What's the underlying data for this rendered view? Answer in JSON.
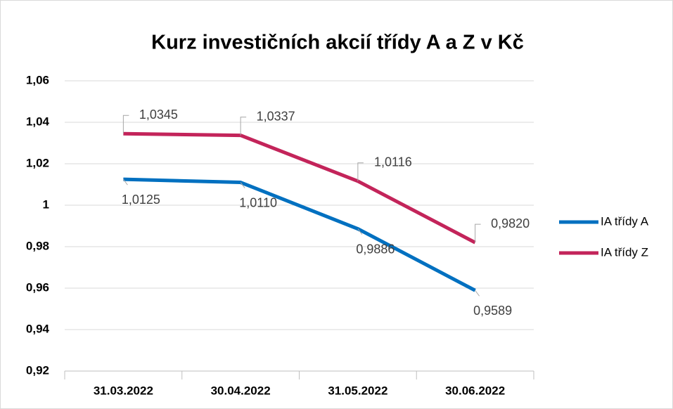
{
  "chart_data": {
    "type": "line",
    "title": "Kurz investičních akcií třídy A a Z v Kč",
    "categories": [
      "31.03.2022",
      "30.04.2022",
      "31.05.2022",
      "30.06.2022"
    ],
    "series": [
      {
        "name": "IA třídy A",
        "color": "#0070c0",
        "values": [
          1.0125,
          1.011,
          0.9886,
          0.9589
        ],
        "value_labels": [
          "1,0125",
          "1,0110",
          "0,9886",
          "0,9589"
        ]
      },
      {
        "name": "IA třídy Z",
        "color": "#c3245a",
        "values": [
          1.0345,
          1.0337,
          1.0116,
          0.982
        ],
        "value_labels": [
          "1,0345",
          "1,0337",
          "1,0116",
          "0,9820"
        ]
      }
    ],
    "ylim": [
      0.92,
      1.06
    ],
    "yticks": [
      {
        "value": 0.92,
        "label": "0,92"
      },
      {
        "value": 0.94,
        "label": "0,94"
      },
      {
        "value": 0.96,
        "label": "0,96"
      },
      {
        "value": 0.98,
        "label": "0,98"
      },
      1,
      {
        "value": 1.02,
        "label": "1,02"
      },
      {
        "value": 1.04,
        "label": "1,04"
      },
      {
        "value": 1.06,
        "label": "1,06"
      }
    ],
    "grid": true,
    "legend": "right"
  }
}
